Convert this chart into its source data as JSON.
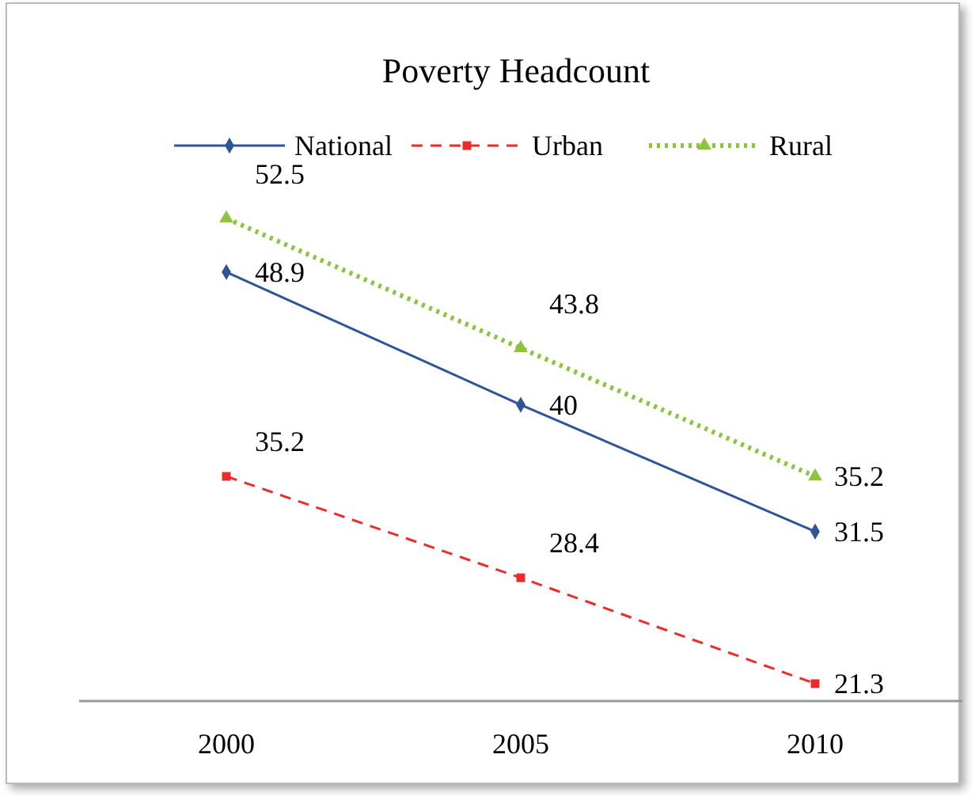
{
  "chart_data": {
    "type": "line",
    "title": "Poverty Headcount",
    "categories": [
      "2000",
      "2005",
      "2010"
    ],
    "tick_labels": "x",
    "data_labels": true,
    "legend": "top",
    "series": [
      {
        "name": "National",
        "color": "#2f5597",
        "values": [
          48.9,
          40,
          31.5
        ],
        "marker": "diamond",
        "line_style": "solid"
      },
      {
        "name": "Urban",
        "color": "#ee2b2b",
        "values": [
          35.2,
          28.4,
          21.3
        ],
        "marker": "square",
        "line_style": "dashed"
      },
      {
        "name": "Rural",
        "color": "#8dc43f",
        "values": [
          52.5,
          43.8,
          35.2
        ],
        "marker": "triangle",
        "line_style": "dotted"
      }
    ]
  }
}
